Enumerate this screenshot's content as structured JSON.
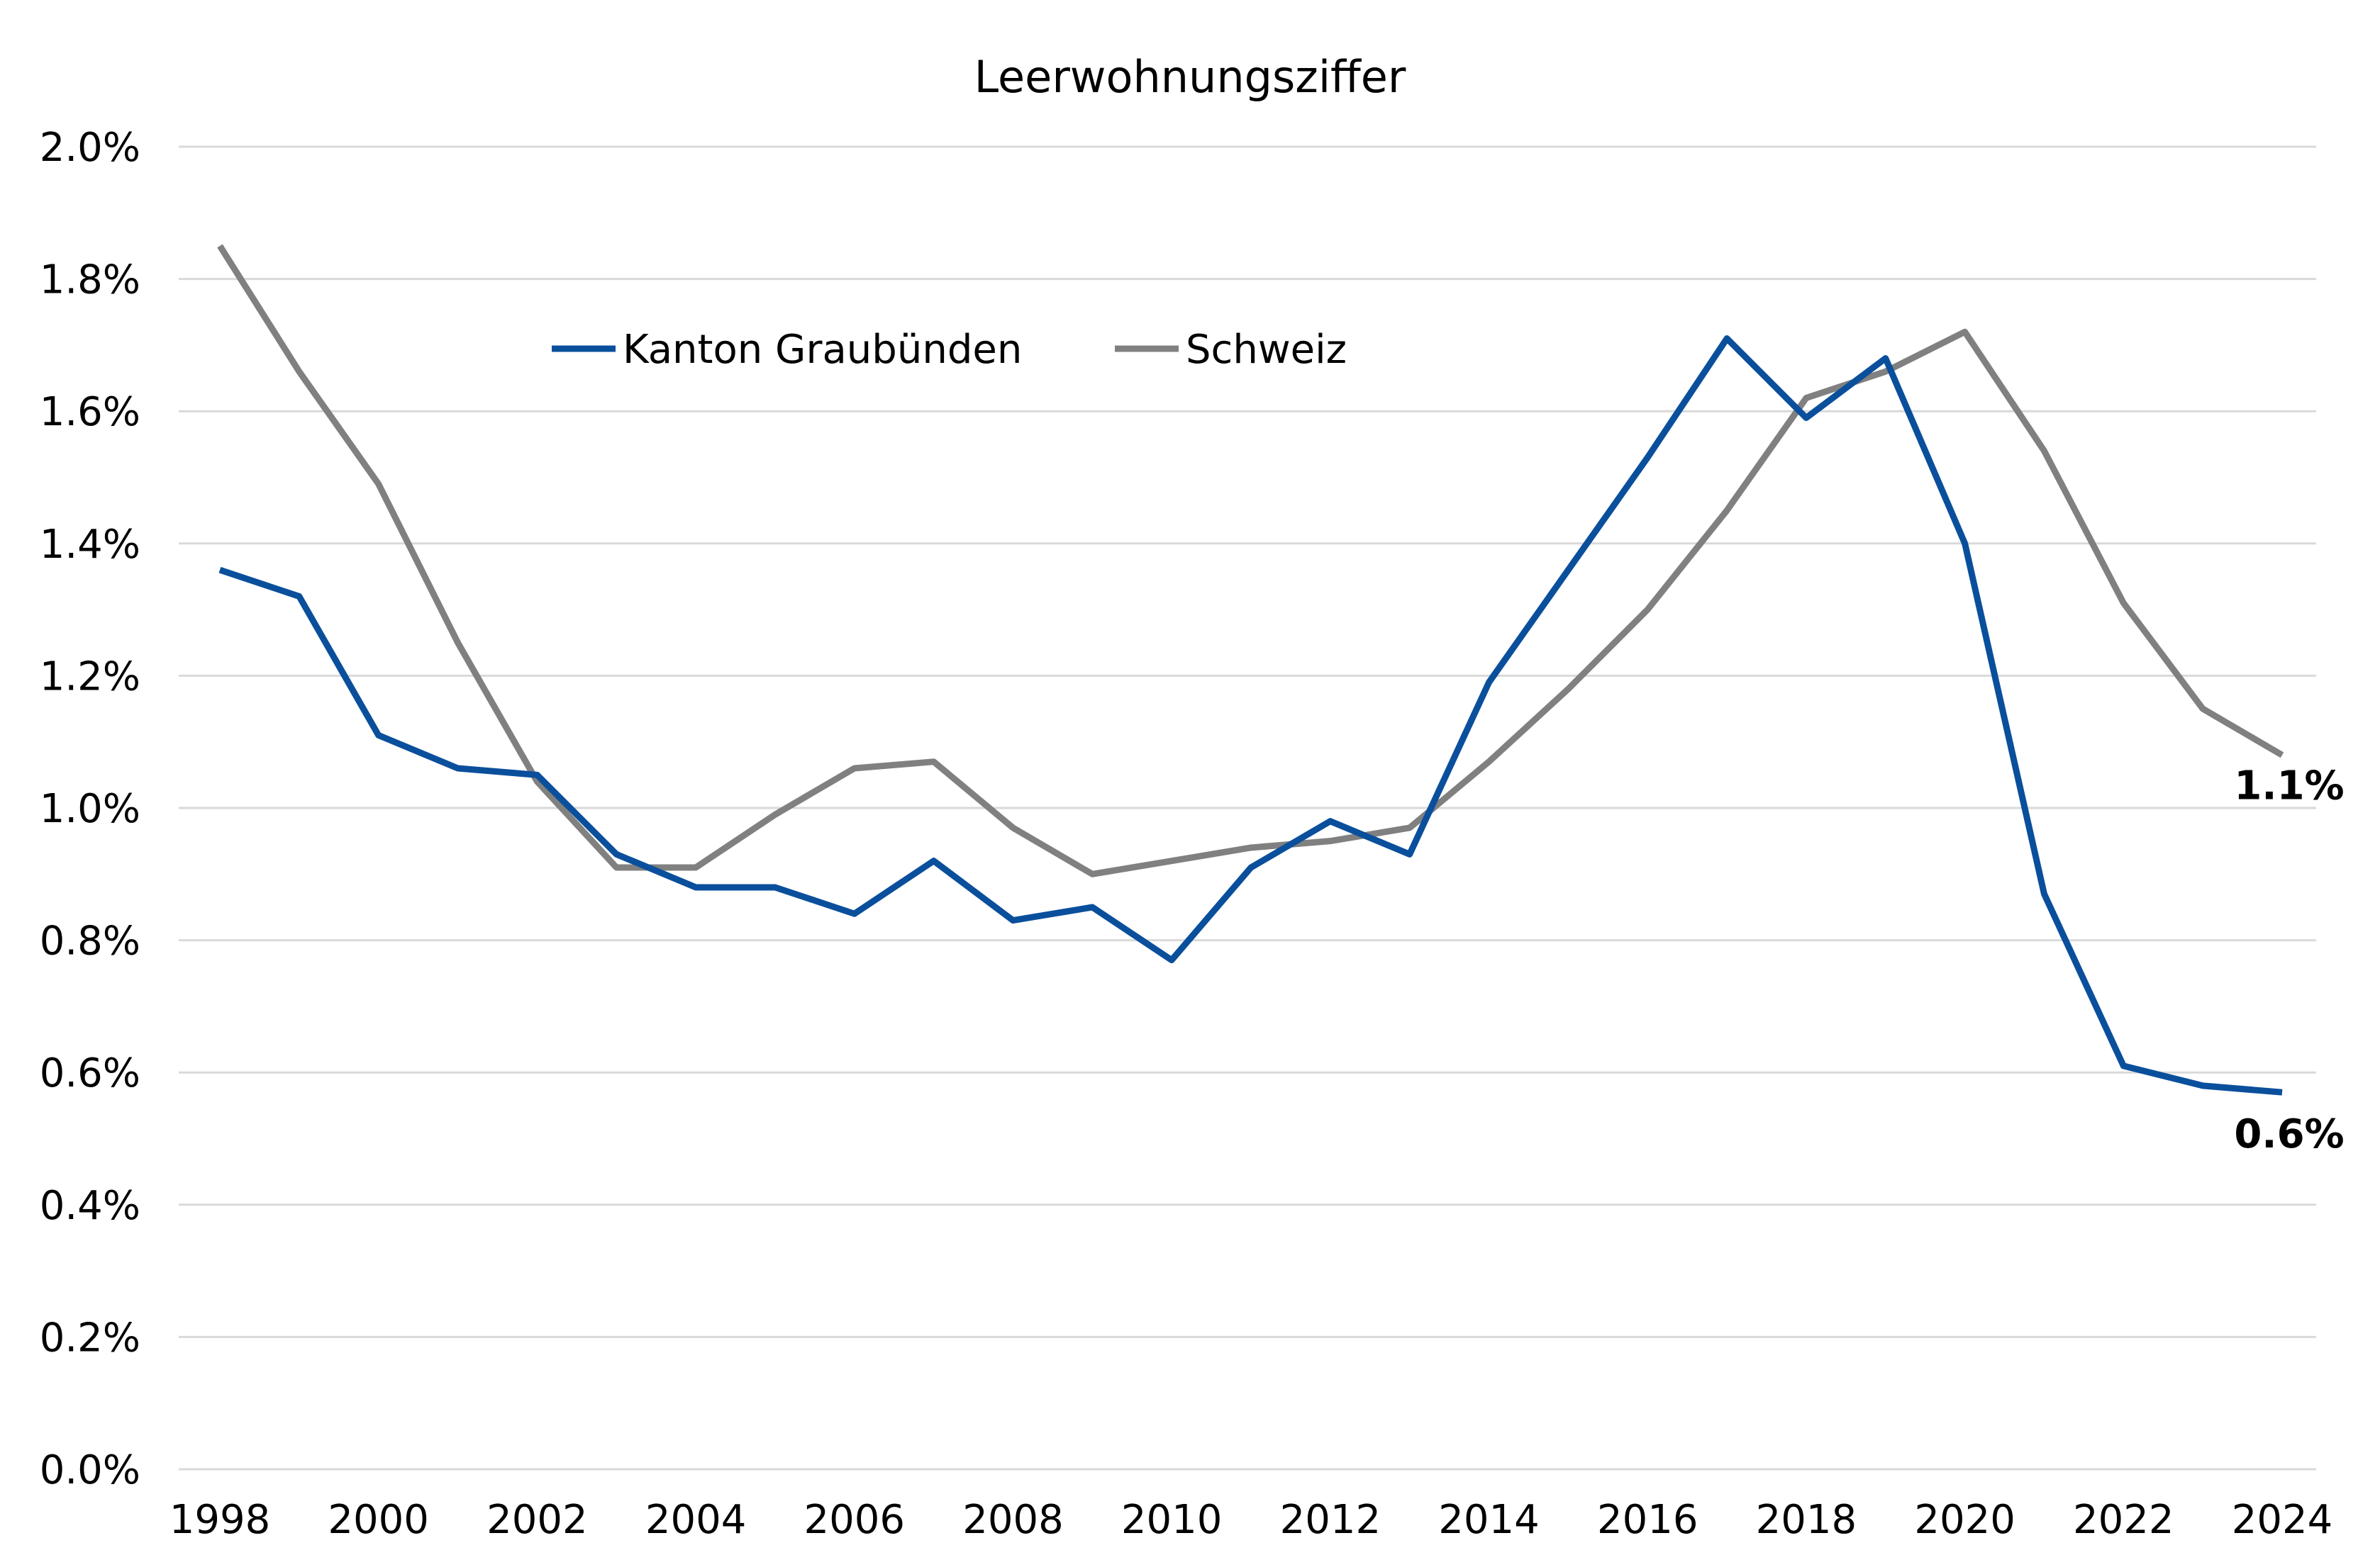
{
  "chart_data": {
    "type": "line",
    "title": "Leerwohnungsziffer",
    "xlabel": "",
    "ylabel": "",
    "x": [
      1998,
      1999,
      2000,
      2001,
      2002,
      2003,
      2004,
      2005,
      2006,
      2007,
      2008,
      2009,
      2010,
      2011,
      2012,
      2013,
      2014,
      2015,
      2016,
      2017,
      2018,
      2019,
      2020,
      2021,
      2022,
      2023,
      2024
    ],
    "xlim": [
      1998,
      2024
    ],
    "xticks": [
      1998,
      2000,
      2002,
      2004,
      2006,
      2008,
      2010,
      2012,
      2014,
      2016,
      2018,
      2020,
      2022,
      2024
    ],
    "ylim": [
      0.0,
      2.0
    ],
    "yticks": [
      0.0,
      0.2,
      0.4,
      0.6,
      0.8,
      1.0,
      1.2,
      1.4,
      1.6,
      1.8,
      2.0
    ],
    "ytick_labels": [
      "0.0%",
      "0.2%",
      "0.4%",
      "0.6%",
      "0.8%",
      "1.0%",
      "1.2%",
      "1.4%",
      "1.6%",
      "1.8%",
      "2.0%"
    ],
    "y_unit": "%",
    "grid": "horizontal",
    "legend_position": "top-left",
    "series": [
      {
        "name": "Kanton Graubünden",
        "color": "#0a4f9c",
        "values": [
          1.36,
          1.32,
          1.11,
          1.06,
          1.05,
          0.93,
          0.88,
          0.88,
          0.84,
          0.92,
          0.83,
          0.85,
          0.77,
          0.91,
          0.98,
          0.93,
          1.19,
          1.36,
          1.53,
          1.71,
          1.59,
          1.68,
          1.4,
          0.87,
          0.61,
          0.58,
          0.57
        ],
        "end_label": "0.6%"
      },
      {
        "name": "Schweiz",
        "color": "#808080",
        "values": [
          1.85,
          1.66,
          1.49,
          1.25,
          1.04,
          0.91,
          0.91,
          0.99,
          1.06,
          1.07,
          0.97,
          0.9,
          0.92,
          0.94,
          0.95,
          0.97,
          1.07,
          1.18,
          1.3,
          1.45,
          1.62,
          1.66,
          1.72,
          1.54,
          1.31,
          1.15,
          1.08
        ],
        "end_label": "1.1%"
      }
    ]
  }
}
